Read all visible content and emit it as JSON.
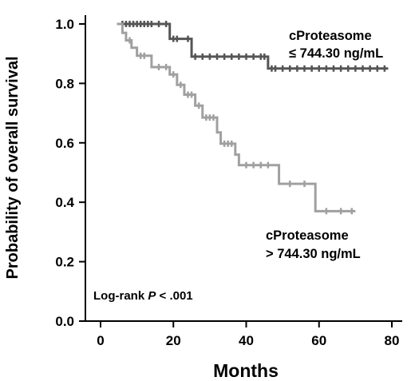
{
  "chart_data": {
    "type": "line",
    "step": true,
    "xlabel": "Months",
    "ylabel": "Probability of overall survival",
    "xlim": [
      -5,
      82
    ],
    "ylim": [
      0,
      1.05
    ],
    "x_ticks": [
      0,
      20,
      40,
      60,
      80
    ],
    "y_ticks": [
      0.0,
      0.2,
      0.4,
      0.6,
      0.8,
      1.0
    ],
    "x_tick_labels": [
      "0",
      "20",
      "40",
      "60",
      "80"
    ],
    "y_tick_labels": [
      "0.0",
      "0.2",
      "0.4",
      "0.6",
      "0.8",
      "1.0"
    ],
    "grid": false,
    "series": [
      {
        "label_line1": "cProteasome",
        "label_line2": "≤ 744.30 ng/mL",
        "color": "#555555",
        "steps": [
          [
            4.5,
            1.0
          ],
          [
            19,
            0.95
          ],
          [
            22,
            0.95
          ],
          [
            25,
            0.89
          ],
          [
            46,
            0.85
          ],
          [
            79,
            0.85
          ]
        ],
        "censors": [
          6,
          7,
          8,
          9,
          10,
          11,
          12,
          13,
          14,
          16,
          18,
          20,
          21,
          24,
          26,
          28,
          30,
          32,
          34,
          36,
          38,
          40,
          42,
          44,
          45,
          47,
          48,
          50,
          52,
          54,
          56,
          58,
          60,
          62,
          64,
          66,
          68,
          70,
          72,
          74,
          76,
          78
        ]
      },
      {
        "label_line1": "cProteasome",
        "label_line2": "> 744.30 ng/mL",
        "color": "#a0a0a0",
        "steps": [
          [
            4.5,
            1.0
          ],
          [
            6,
            0.97
          ],
          [
            7,
            0.945
          ],
          [
            8.5,
            0.92
          ],
          [
            10,
            0.893
          ],
          [
            14,
            0.855
          ],
          [
            19,
            0.83
          ],
          [
            21,
            0.795
          ],
          [
            23,
            0.762
          ],
          [
            26,
            0.725
          ],
          [
            28,
            0.685
          ],
          [
            32,
            0.635
          ],
          [
            33,
            0.597
          ],
          [
            37,
            0.56
          ],
          [
            38,
            0.525
          ],
          [
            49,
            0.462
          ],
          [
            59,
            0.37
          ],
          [
            70,
            0.37
          ]
        ],
        "censors": [
          8,
          11,
          12,
          16,
          18,
          20,
          22,
          24,
          25,
          27,
          29,
          30,
          31,
          34,
          35,
          36,
          40,
          42,
          44,
          46,
          52,
          56,
          62,
          66,
          69
        ]
      }
    ],
    "annotations": {
      "logrank_prefix": "Log-rank ",
      "logrank_p": "P",
      "logrank_suffix": " < .001"
    }
  }
}
